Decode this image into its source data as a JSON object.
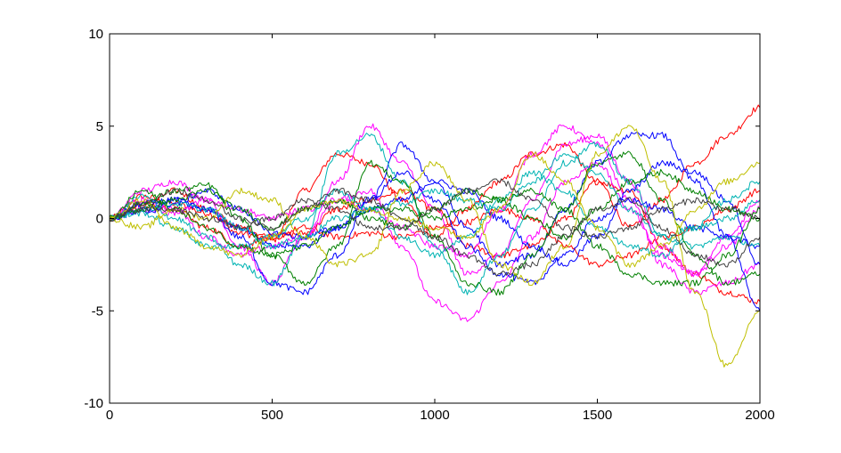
{
  "chart_data": {
    "type": "line",
    "title": "",
    "xlabel": "",
    "ylabel": "",
    "xlim": [
      0,
      2000
    ],
    "ylim": [
      -10,
      10
    ],
    "x_ticks": [
      0,
      500,
      1000,
      1500,
      2000
    ],
    "x_tick_labels": [
      "0",
      "500",
      "1000",
      "1500",
      "2000"
    ],
    "y_ticks": [
      -10,
      -5,
      0,
      5,
      10
    ],
    "y_tick_labels": [
      "-10",
      "-5",
      "0",
      "5",
      "10"
    ],
    "grid": false,
    "legend": "none",
    "x": [
      0,
      100,
      200,
      300,
      400,
      500,
      600,
      700,
      800,
      900,
      1000,
      1100,
      1200,
      1300,
      1400,
      1500,
      1600,
      1700,
      1800,
      1900,
      2000
    ],
    "series": [
      {
        "color": "#ff0000",
        "values": [
          0,
          1.2,
          0.8,
          0.3,
          -0.8,
          -1.2,
          1.5,
          3.5,
          3.0,
          1.0,
          -1.0,
          0.5,
          2.0,
          3.5,
          4.0,
          2.0,
          -0.5,
          1.0,
          3.0,
          4.5,
          6.0
        ]
      },
      {
        "color": "#ff0000",
        "values": [
          0,
          0.6,
          1.5,
          0.5,
          -0.5,
          -1.0,
          -0.8,
          0.5,
          1.0,
          1.5,
          0.5,
          -1.5,
          -2.0,
          -1.5,
          0.0,
          2.0,
          1.5,
          -1.5,
          -3.0,
          -4.0,
          -4.5
        ]
      },
      {
        "color": "#ff0000",
        "values": [
          0,
          0.8,
          0.5,
          -0.5,
          -1.5,
          -1.0,
          -0.5,
          -1.0,
          -0.8,
          -1.0,
          -0.5,
          -0.2,
          0.5,
          0.0,
          -1.5,
          -2.5,
          -2.0,
          -1.0,
          -0.5,
          0.5,
          1.5
        ]
      },
      {
        "color": "#ff00ff",
        "values": [
          0,
          1.5,
          2.0,
          1.0,
          -1.5,
          -3.5,
          -1.0,
          2.0,
          5.0,
          3.0,
          0.5,
          -3.0,
          -2.0,
          1.0,
          4.0,
          4.5,
          2.0,
          -1.5,
          -3.0,
          -1.5,
          0.5
        ]
      },
      {
        "color": "#ff00ff",
        "values": [
          0,
          1.0,
          0.5,
          -1.0,
          -2.0,
          -1.5,
          -1.0,
          1.0,
          1.5,
          -1.5,
          -4.5,
          -5.5,
          -3.5,
          -1.0,
          2.0,
          3.0,
          0.5,
          -2.0,
          -3.0,
          -1.0,
          1.0
        ]
      },
      {
        "color": "#ff00ff",
        "values": [
          0,
          0.5,
          0.3,
          1.0,
          0.5,
          0.0,
          0.5,
          1.0,
          0.5,
          -0.5,
          -1.5,
          -2.0,
          0.5,
          3.5,
          5.0,
          4.0,
          1.0,
          -2.5,
          -4.0,
          -3.5,
          -2.5
        ]
      },
      {
        "color": "#0000ff",
        "values": [
          0,
          0.8,
          1.0,
          0.5,
          -1.0,
          -3.5,
          -4.0,
          -2.0,
          1.0,
          4.0,
          2.0,
          -0.5,
          -2.5,
          -2.0,
          0.5,
          3.0,
          4.5,
          4.5,
          2.0,
          -1.0,
          -5.0
        ]
      },
      {
        "color": "#0000ff",
        "values": [
          0,
          0.5,
          1.0,
          0.5,
          -0.5,
          -1.5,
          -1.5,
          -0.5,
          0.5,
          1.0,
          2.0,
          1.5,
          0.0,
          -1.5,
          -2.5,
          -1.0,
          1.5,
          3.0,
          2.5,
          1.0,
          -2.5
        ]
      },
      {
        "color": "#0000ff",
        "values": [
          0,
          0.3,
          0.8,
          1.5,
          0.5,
          -0.8,
          -1.0,
          -0.5,
          1.0,
          2.5,
          1.0,
          -1.5,
          -3.0,
          -3.5,
          -2.0,
          0.0,
          1.0,
          0.5,
          -0.5,
          -1.0,
          -1.5
        ]
      },
      {
        "color": "#00b3b3",
        "values": [
          0,
          1.2,
          0.0,
          -1.0,
          -2.5,
          -3.5,
          -1.0,
          3.5,
          4.5,
          2.0,
          -1.5,
          -4.0,
          -2.0,
          0.5,
          3.0,
          4.0,
          2.0,
          -1.0,
          -1.5,
          -1.0,
          -1.5
        ]
      },
      {
        "color": "#00b3b3",
        "values": [
          0,
          0.5,
          0.8,
          0.5,
          -0.5,
          -1.5,
          -1.0,
          0.0,
          0.5,
          0.8,
          1.5,
          1.0,
          0.5,
          2.0,
          3.5,
          2.5,
          0.5,
          -1.0,
          -0.5,
          0.0,
          1.0
        ]
      },
      {
        "color": "#00b3b3",
        "values": [
          0,
          0.3,
          -0.5,
          -1.5,
          -1.5,
          -1.0,
          0.0,
          1.5,
          0.5,
          -1.0,
          -2.0,
          -1.0,
          1.0,
          2.5,
          1.5,
          -0.5,
          -1.5,
          -2.0,
          -0.5,
          1.0,
          2.0
        ]
      },
      {
        "color": "#008000",
        "values": [
          0,
          0.8,
          1.5,
          1.8,
          0.0,
          -2.0,
          -3.5,
          -1.5,
          3.0,
          2.0,
          -1.0,
          -3.5,
          -4.0,
          -2.0,
          0.5,
          3.0,
          3.5,
          1.0,
          -2.0,
          -3.5,
          -3.0
        ]
      },
      {
        "color": "#008000",
        "values": [
          0,
          0.5,
          1.0,
          1.5,
          0.5,
          -0.5,
          0.5,
          1.0,
          0.0,
          -0.5,
          0.5,
          1.5,
          1.0,
          0.0,
          -1.0,
          0.5,
          2.0,
          2.5,
          1.5,
          0.5,
          0.0
        ]
      },
      {
        "color": "#008000",
        "values": [
          0,
          1.5,
          0.5,
          -0.5,
          -1.5,
          -2.0,
          -1.5,
          -0.5,
          0.5,
          0.5,
          0.0,
          0.5,
          1.0,
          1.5,
          0.5,
          -1.5,
          -3.0,
          -3.5,
          -3.5,
          -2.0,
          0.5
        ]
      },
      {
        "color": "#bfbf00",
        "values": [
          0,
          -0.5,
          0.5,
          0.0,
          1.5,
          1.0,
          -1.0,
          -2.5,
          -2.0,
          1.5,
          3.0,
          1.0,
          -2.5,
          -3.5,
          -1.5,
          3.5,
          5.0,
          2.0,
          -4.0,
          -8.0,
          -5.0
        ]
      },
      {
        "color": "#bfbf00",
        "values": [
          0,
          1.0,
          -0.5,
          -1.5,
          -2.0,
          -1.0,
          0.5,
          1.0,
          0.5,
          0.0,
          -0.5,
          -1.0,
          0.5,
          3.5,
          2.0,
          -0.5,
          -2.5,
          -1.5,
          0.5,
          2.0,
          3.0
        ]
      },
      {
        "color": "#404040",
        "values": [
          0,
          0.8,
          1.5,
          1.0,
          0.0,
          -0.5,
          0.5,
          1.5,
          1.0,
          0.0,
          -1.0,
          -2.0,
          -3.0,
          -2.5,
          -1.0,
          0.5,
          1.0,
          -0.5,
          -2.0,
          -2.5,
          -1.0
        ]
      },
      {
        "color": "#404040",
        "values": [
          0,
          0.5,
          0.5,
          0.0,
          -0.5,
          0.0,
          1.0,
          0.5,
          -0.5,
          -0.5,
          0.5,
          1.5,
          2.0,
          1.0,
          -0.5,
          -1.0,
          -0.5,
          0.5,
          1.0,
          0.5,
          0.0
        ]
      }
    ]
  }
}
